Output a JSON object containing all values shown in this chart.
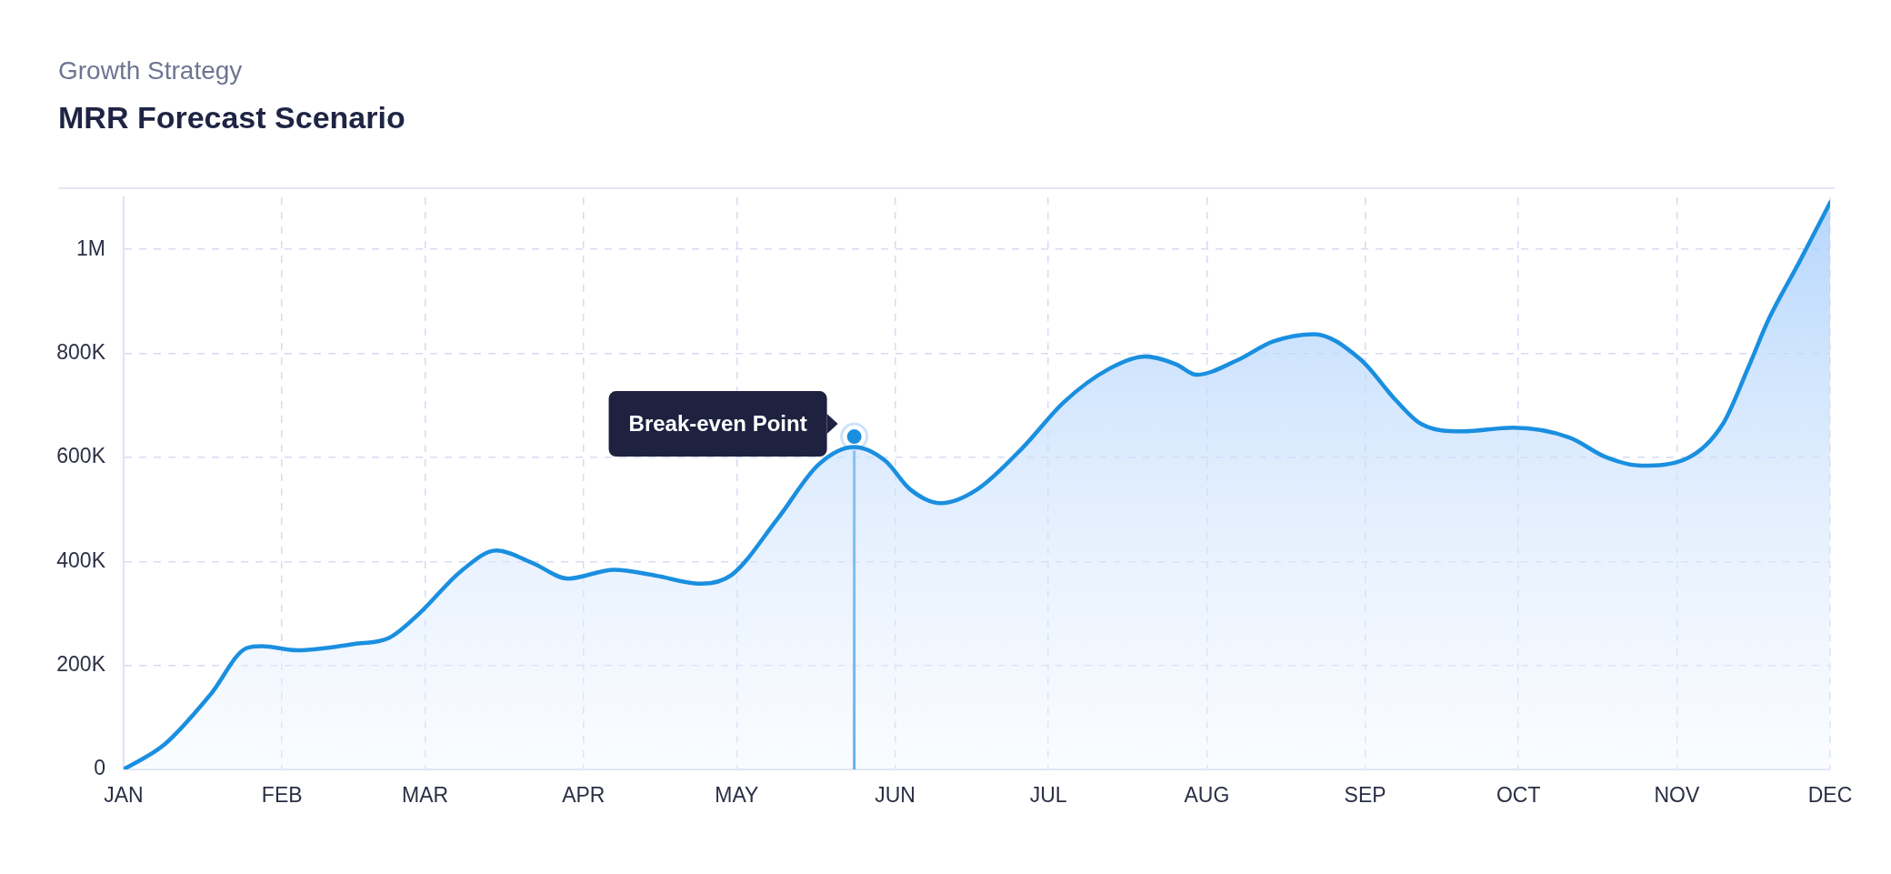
{
  "chart_data": {
    "type": "area",
    "title": "MRR Forecast Scenario",
    "subtitle": "Growth Strategy",
    "x": [
      "--01-01",
      "--01-09",
      "--01-18",
      "--01-25",
      "--01-28",
      "--02-04",
      "--02-15",
      "--02-22",
      "--02-28",
      "--03-08",
      "--03-15",
      "--03-22",
      "--03-29",
      "--04-07",
      "--04-15",
      "--04-24",
      "--04-30",
      "--05-09",
      "--05-17",
      "--05-24",
      "--05-30",
      "--06-04",
      "--06-10",
      "--06-17",
      "--06-26",
      "--07-04",
      "--07-13",
      "--07-20",
      "--07-26",
      "--07-30",
      "--08-07",
      "--08-14",
      "--08-22",
      "--08-31",
      "--09-07",
      "--09-12",
      "--09-20",
      "--09-30",
      "--10-11",
      "--10-18",
      "--10-25",
      "--11-03",
      "--11-10",
      "--11-15",
      "--11-19",
      "--11-25",
      "--12-01"
    ],
    "values": [
      0,
      48000,
      144000,
      233000,
      237000,
      229000,
      241000,
      253000,
      301000,
      381000,
      421000,
      397000,
      367000,
      384000,
      373000,
      357000,
      374000,
      482000,
      586000,
      620000,
      594000,
      538000,
      512000,
      538000,
      619000,
      706000,
      771000,
      794000,
      779000,
      759000,
      787000,
      823000,
      837000,
      789000,
      710000,
      664000,
      650000,
      657000,
      638000,
      601000,
      584000,
      598000,
      664000,
      773000,
      866000,
      976000,
      1090000
    ],
    "color": "#1a8fe0",
    "xlim": [
      "--01-01",
      "--12-01"
    ],
    "xticks": [
      {
        "value": "--01-01",
        "label": "JAN"
      },
      {
        "value": "--02-01",
        "label": "FEB"
      },
      {
        "value": "--03-01",
        "label": "MAR"
      },
      {
        "value": "--04-01",
        "label": "APR"
      },
      {
        "value": "--05-01",
        "label": "MAY"
      },
      {
        "value": "--06-01",
        "label": "JUN"
      },
      {
        "value": "--07-01",
        "label": "JUL"
      },
      {
        "value": "--08-01",
        "label": "AUG"
      },
      {
        "value": "--09-01",
        "label": "SEP"
      },
      {
        "value": "--10-01",
        "label": "OCT"
      },
      {
        "value": "--11-01",
        "label": "NOV"
      },
      {
        "value": "--12-01",
        "label": "DEC"
      }
    ],
    "ylim": [
      0,
      1100000
    ],
    "yticks": [
      0,
      {
        "value": 200000,
        "label": "200K"
      },
      {
        "value": 400000,
        "label": "400K"
      },
      {
        "value": 600000,
        "label": "600K"
      },
      {
        "value": 800000,
        "label": "800K"
      },
      {
        "value": 1000000,
        "label": "1M"
      }
    ],
    "ref_lines": [
      {
        "axis": "x",
        "value": "--05-24"
      }
    ],
    "annotations": [
      {
        "text": "Break-even Point",
        "x": "--05-24",
        "y": 640000
      }
    ],
    "grid": true,
    "legend": false,
    "marker": "none",
    "line_style": "solid"
  }
}
